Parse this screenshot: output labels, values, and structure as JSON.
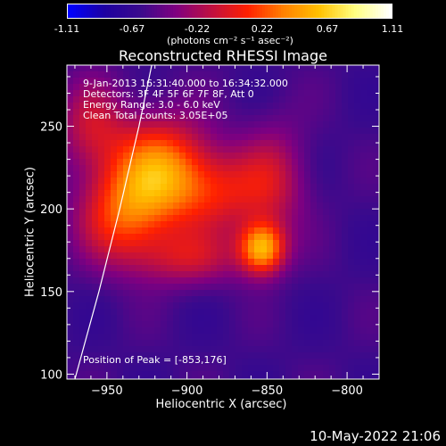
{
  "colorbar": {
    "ticks": [
      "-1.11",
      "-0.67",
      "-0.22",
      "0.22",
      "0.67",
      "1.11"
    ],
    "units_label": "(photons cm⁻² s⁻¹ asec⁻²)"
  },
  "title": "Reconstructed RHESSI Image",
  "info": {
    "line1": "9-Jan-2013 16:31:40.000 to 16:34:32.000",
    "line2": "Detectors: 3F 4F 5F 6F 7F 8F, Att 0",
    "line3": "Energy Range: 3.0 - 6.0 keV",
    "line4": "Clean    Total counts: 3.05E+05",
    "peak": "Position of Peak = [-853,176]"
  },
  "timestamp": "10-May-2022 21:06",
  "chart_data": {
    "type": "heatmap",
    "title": "Reconstructed RHESSI Image",
    "xlabel": "Heliocentric X (arcsec)",
    "ylabel": "Heliocentric Y (arcsec)",
    "xlim": [
      -975,
      -780
    ],
    "ylim": [
      97,
      287
    ],
    "xticks": [
      -950,
      -900,
      -850,
      -800
    ],
    "yticks": [
      100,
      150,
      200,
      250
    ],
    "colorbar_range": [
      -1.11,
      1.11
    ],
    "colormap": [
      "#0000ff",
      "#1e00a0",
      "#3a0a8c",
      "#800080",
      "#c01040",
      "#ff2000",
      "#ff8000",
      "#ffc000",
      "#ffff80",
      "#ffffff"
    ],
    "peak": [
      -853,
      176
    ],
    "sources": [
      {
        "x": -918,
        "y": 225,
        "amp": 0.9,
        "sx": 22,
        "sy": 22
      },
      {
        "x": -940,
        "y": 195,
        "amp": 0.7,
        "sx": 20,
        "sy": 20
      },
      {
        "x": -853,
        "y": 176,
        "amp": 1.1,
        "sx": 10,
        "sy": 11
      },
      {
        "x": -880,
        "y": 210,
        "amp": 0.55,
        "sx": 25,
        "sy": 18
      },
      {
        "x": -845,
        "y": 220,
        "amp": 0.35,
        "sx": 15,
        "sy": 25
      },
      {
        "x": -960,
        "y": 250,
        "amp": 0.45,
        "sx": 15,
        "sy": 20
      },
      {
        "x": -900,
        "y": 170,
        "amp": 0.45,
        "sx": 25,
        "sy": 12
      }
    ],
    "background": -0.6,
    "limb_curve": [
      [
        -970,
        97
      ],
      [
        -955,
        150
      ],
      [
        -942,
        200
      ],
      [
        -930,
        250
      ],
      [
        -922,
        287
      ]
    ]
  }
}
